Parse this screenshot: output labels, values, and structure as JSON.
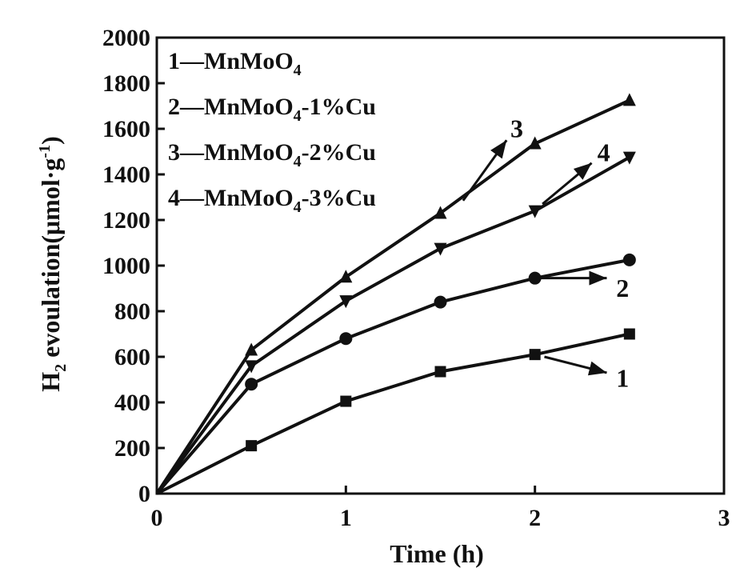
{
  "chart_data": {
    "type": "line",
    "xlabel": "Time (h)",
    "ylabel": {
      "main": "H",
      "sub": "2",
      "rest": " evoulation(μmol·g",
      "sup": "-1",
      "close": ")"
    },
    "xlim": [
      0,
      3
    ],
    "ylim": [
      0,
      2000
    ],
    "x_ticks": [
      "0",
      "1",
      "2",
      "3"
    ],
    "y_ticks": [
      "0",
      "200",
      "400",
      "600",
      "800",
      "1000",
      "1200",
      "1400",
      "1600",
      "1800",
      "2000"
    ],
    "legend": [
      {
        "number": "1",
        "dash": "—",
        "base": "MnMoO",
        "sub": "4",
        "suffix": ""
      },
      {
        "number": "2",
        "dash": "—",
        "base": "MnMoO",
        "sub": "4",
        "suffix": "-1%Cu"
      },
      {
        "number": "3",
        "dash": "—",
        "base": "MnMoO",
        "sub": "4",
        "suffix": "-2%Cu"
      },
      {
        "number": "4",
        "dash": "—",
        "base": "MnMoO",
        "sub": "4",
        "suffix": "-3%Cu"
      }
    ],
    "legend_position": "top-left",
    "series": [
      {
        "name": "MnMoO4",
        "label": "1",
        "marker": "square",
        "x": [
          0,
          0.5,
          1,
          1.5,
          2,
          2.5
        ],
        "values": [
          0,
          210,
          405,
          535,
          610,
          700
        ]
      },
      {
        "name": "MnMoO4-1%Cu",
        "label": "2",
        "marker": "circle",
        "x": [
          0,
          0.5,
          1,
          1.5,
          2,
          2.5
        ],
        "values": [
          0,
          480,
          680,
          840,
          945,
          1025
        ]
      },
      {
        "name": "MnMoO4-2%Cu",
        "label": "3",
        "marker": "triangle-up",
        "x": [
          0,
          0.5,
          1,
          1.5,
          2,
          2.5
        ],
        "values": [
          0,
          630,
          950,
          1230,
          1535,
          1725
        ]
      },
      {
        "name": "MnMoO4-3%Cu",
        "label": "4",
        "marker": "triangle-down",
        "x": [
          0,
          0.5,
          1,
          1.5,
          2,
          2.5
        ],
        "values": [
          0,
          560,
          845,
          1075,
          1240,
          1475
        ]
      }
    ],
    "callouts": [
      {
        "text": "1",
        "series": 0,
        "from": [
          2.05,
          600
        ],
        "to": [
          2.38,
          530
        ],
        "label_at": [
          2.43,
          510
        ]
      },
      {
        "text": "2",
        "series": 1,
        "from": [
          2.03,
          945
        ],
        "to": [
          2.38,
          945
        ],
        "label_at": [
          2.43,
          905
        ]
      },
      {
        "text": "3",
        "series": 2,
        "from": [
          1.62,
          1285
        ],
        "to": [
          1.85,
          1550
        ],
        "label_at": [
          1.87,
          1605
        ]
      },
      {
        "text": "4",
        "series": 3,
        "from": [
          2.04,
          1270
        ],
        "to": [
          2.3,
          1450
        ],
        "label_at": [
          2.33,
          1500
        ]
      }
    ]
  }
}
